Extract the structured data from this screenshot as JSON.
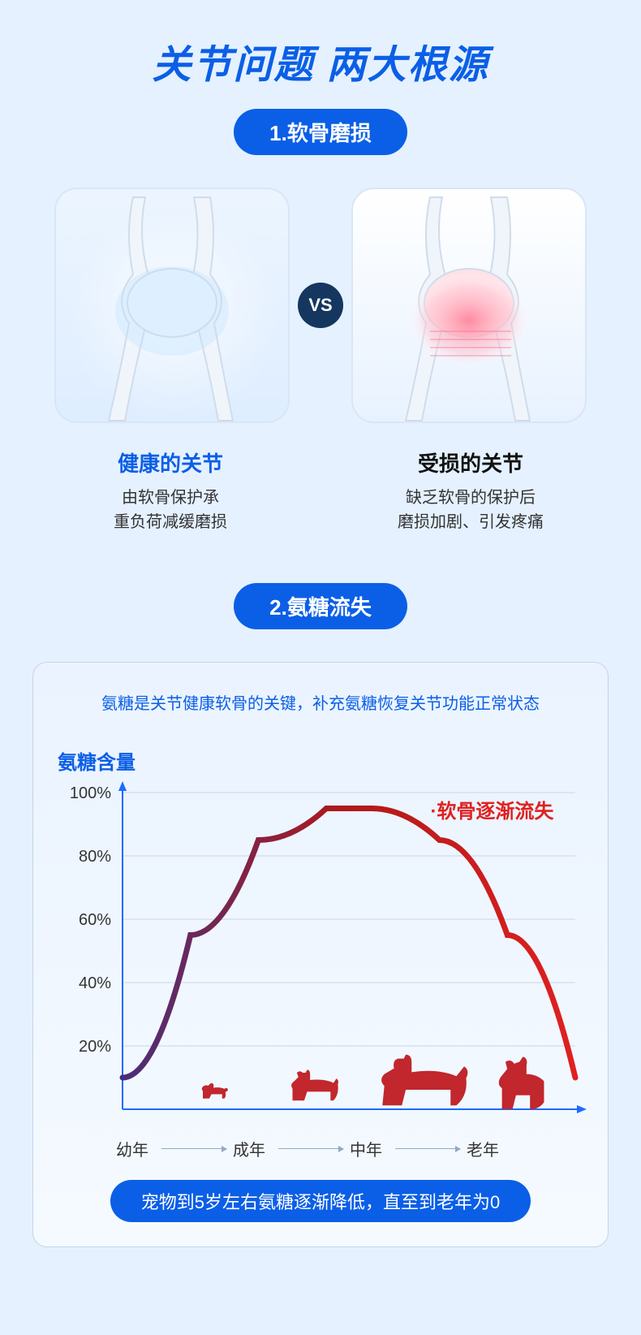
{
  "colors": {
    "title": "#0b5fe6",
    "pill_bg": "#0b5fe6",
    "vs_bg": "#15365f",
    "healthy_title": "#0b5fe6",
    "damaged_title": "#111111",
    "chart_intro": "#0b5fe6",
    "y_title": "#0b5fe6",
    "grid": "#c9d7e8",
    "axis": "#1b6bff",
    "curve_start": "#4a2e7a",
    "curve_mid": "#b01919",
    "curve_end": "#e02020",
    "footer_pill_bg": "#0b5fe6",
    "dog_fill": "#c1272d",
    "healthy_glow": "#bfe2ff",
    "damaged_glow": "#ff6b8a"
  },
  "title_text": "关节问题 两大根源",
  "section1": {
    "pill": "1.软骨磨损",
    "vs": "VS",
    "healthy": {
      "title": "健康的关节",
      "line1": "由软骨保护承",
      "line2": "重负荷减缓磨损"
    },
    "damaged": {
      "title": "受损的关节",
      "line1": "缺乏软骨的保护后",
      "line2": "磨损加剧、引发疼痛"
    }
  },
  "section2": {
    "pill": "2.氨糖流失",
    "intro": "氨糖是关节健康软骨的关键，补充氨糖恢复关节功能正常状态",
    "y_title": "氨糖含量",
    "annotation": "·软骨逐渐流失",
    "y_ticks": [
      "100%",
      "80%",
      "60%",
      "40%",
      "20%"
    ],
    "y_values": [
      100,
      80,
      60,
      40,
      20
    ],
    "x_labels": [
      "幼年",
      "成年",
      "中年",
      "老年"
    ],
    "curve_points": [
      {
        "x": 0,
        "y": 10
      },
      {
        "x": 15,
        "y": 55
      },
      {
        "x": 30,
        "y": 85
      },
      {
        "x": 45,
        "y": 95
      },
      {
        "x": 55,
        "y": 95
      },
      {
        "x": 70,
        "y": 85
      },
      {
        "x": 85,
        "y": 55
      },
      {
        "x": 100,
        "y": 10
      }
    ],
    "dog_positions": [
      22,
      44,
      66,
      90
    ],
    "dog_scales": [
      0.55,
      0.75,
      1.0,
      0.9
    ],
    "footer": "宠物到5岁左右氨糖逐渐降低，直至到老年为0"
  }
}
